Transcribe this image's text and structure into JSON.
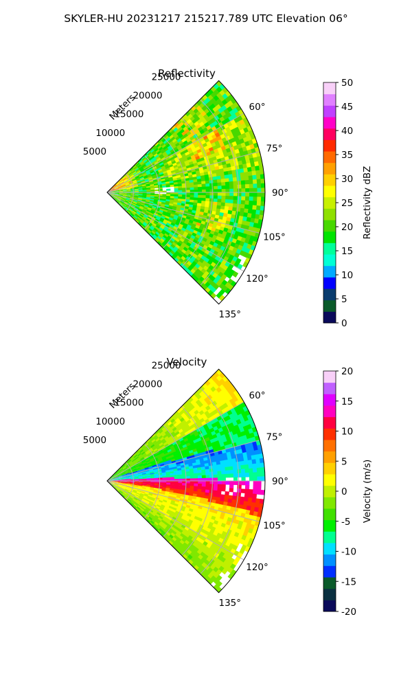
{
  "figure_title": "SKYLER-HU  20231217  215217.789 UTC Elevation 06°",
  "colors": {
    "reflectivity_scale": [
      "#0a0a5a",
      "#0a5a2a",
      "#0a3c6e",
      "#0000ff",
      "#00aaff",
      "#00ffd5",
      "#00ff9a",
      "#00e400",
      "#48d800",
      "#8fe000",
      "#c8f000",
      "#ffff00",
      "#ffd000",
      "#ffa000",
      "#ff6a00",
      "#ff2a00",
      "#ff0060",
      "#ff00c8",
      "#c040ff",
      "#e080ff",
      "#f8d0f8"
    ],
    "velocity_scale": [
      "#0a0a5a",
      "#0a3040",
      "#0a5a2a",
      "#0030ff",
      "#0090ff",
      "#00e0ff",
      "#00ff90",
      "#00f000",
      "#40e000",
      "#80e800",
      "#c0f000",
      "#ffff00",
      "#ffd000",
      "#ffa000",
      "#ff7000",
      "#ff3000",
      "#ff0040",
      "#ff00c0",
      "#e000ff",
      "#c060ff",
      "#f8d0f8"
    ],
    "grid": "#b0b0b0"
  },
  "chart_data": [
    {
      "type": "heatmap",
      "projection": "polar-sector",
      "title": "Reflectivity",
      "radial_label": "Meters",
      "radial_ticks": [
        "5000",
        "10000",
        "15000",
        "20000",
        "25000"
      ],
      "angle_ticks": [
        "60°",
        "75°",
        "90°",
        "105°",
        "120°",
        "135°"
      ],
      "angle_range_deg": [
        45,
        135
      ],
      "radial_range_m": [
        0,
        30000
      ],
      "colorbar": {
        "label": "Reflectivity dBZ",
        "min": 0,
        "max": 50,
        "ticks": [
          "0",
          "5",
          "10",
          "15",
          "20",
          "25",
          "30",
          "35",
          "40",
          "45",
          "50"
        ]
      },
      "description_values": {
        "typical_dbz": 22,
        "near_radar_max_dbz": 38
      }
    },
    {
      "type": "heatmap",
      "projection": "polar-sector",
      "title": "Velocity",
      "radial_label": "Meters",
      "radial_ticks": [
        "5000",
        "10000",
        "15000",
        "20000",
        "25000"
      ],
      "angle_ticks": [
        "60°",
        "75°",
        "90°",
        "105°",
        "120°",
        "135°"
      ],
      "angle_range_deg": [
        45,
        135
      ],
      "radial_range_m": [
        0,
        30000
      ],
      "colorbar": {
        "label": "Velocity (m/s)",
        "min": -20,
        "max": 20,
        "ticks": [
          "-20",
          "-15",
          "-10",
          "-5",
          "0",
          "5",
          "10",
          "15",
          "20"
        ]
      },
      "description_values": {
        "north_sector_ms": -5,
        "south_sector_ms": 3,
        "band_max_ms": 15
      }
    }
  ]
}
